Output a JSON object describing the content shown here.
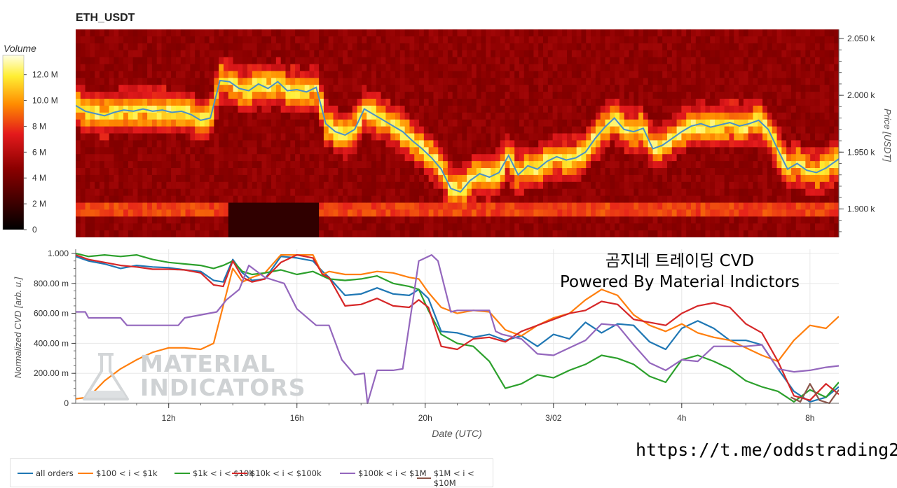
{
  "chart_data": [
    {
      "type": "heatmap",
      "title": "ETH_USDT",
      "ylabel": "Price [USDT]",
      "ylim": [
        1875,
        2058
      ],
      "y_ticks": [
        "2.050 k",
        "2.000 k",
        "1.950 k",
        "1.900 k"
      ],
      "y_tick_values": [
        2050,
        2000,
        1950,
        1900
      ],
      "colorbar": {
        "label": "Volume",
        "ticks": [
          "12.0 M",
          "10.0 M",
          "8 M",
          "6 M",
          "4 M",
          "2 M",
          "0"
        ],
        "tick_values": [
          12,
          10,
          8,
          6,
          4,
          2,
          0
        ],
        "max": 13.5,
        "unit": "M"
      },
      "x_range_hours": [
        9.1,
        32.9
      ],
      "price_line_color": "#4a90c8",
      "price_line": {
        "x": [
          9.1,
          9.4,
          9.7,
          10.0,
          10.3,
          10.6,
          10.9,
          11.2,
          11.5,
          11.8,
          12.1,
          12.4,
          12.7,
          13.0,
          13.3,
          13.6,
          13.9,
          14.2,
          14.5,
          14.8,
          15.1,
          15.4,
          15.7,
          16.0,
          16.3,
          16.6,
          16.9,
          17.2,
          17.5,
          17.8,
          18.1,
          18.4,
          18.7,
          19.0,
          19.3,
          19.6,
          19.9,
          20.2,
          20.5,
          20.8,
          21.1,
          21.4,
          21.7,
          22.0,
          22.3,
          22.6,
          22.9,
          23.2,
          23.5,
          23.8,
          24.1,
          24.4,
          24.7,
          25.0,
          25.3,
          25.6,
          25.9,
          26.2,
          26.5,
          26.8,
          27.1,
          27.4,
          27.7,
          28.0,
          28.3,
          28.6,
          28.9,
          29.2,
          29.5,
          29.8,
          30.1,
          30.4,
          30.7,
          31.0,
          31.3,
          31.6,
          31.9,
          32.2,
          32.5,
          32.9
        ],
        "y": [
          1991,
          1986,
          1984,
          1982,
          1985,
          1987,
          1986,
          1988,
          1986,
          1987,
          1985,
          1986,
          1983,
          1978,
          1980,
          2013,
          2012,
          2006,
          2004,
          2010,
          2006,
          2012,
          2004,
          2005,
          2003,
          2007,
          1975,
          1968,
          1965,
          1970,
          1988,
          1983,
          1978,
          1973,
          1968,
          1960,
          1953,
          1945,
          1935,
          1918,
          1915,
          1925,
          1931,
          1928,
          1932,
          1947,
          1930,
          1938,
          1935,
          1942,
          1946,
          1943,
          1945,
          1950,
          1962,
          1972,
          1980,
          1970,
          1968,
          1971,
          1953,
          1956,
          1962,
          1968,
          1973,
          1975,
          1972,
          1974,
          1976,
          1973,
          1975,
          1978,
          1970,
          1952,
          1935,
          1940,
          1934,
          1932,
          1936,
          1944
        ]
      }
    },
    {
      "type": "line",
      "xlabel": "Date (UTC)",
      "ylabel": "Normalized CVD [arb. u.]",
      "ylim": [
        0,
        1000
      ],
      "y_ticks": [
        "0",
        "200.00 m",
        "400.00 m",
        "600.00 m",
        "800.00 m",
        "1.000"
      ],
      "y_tick_values": [
        0,
        200,
        400,
        600,
        800,
        1000
      ],
      "x_ticks": [
        "12h",
        "16h",
        "20h",
        "3/02",
        "4h",
        "8h"
      ],
      "x_tick_hours": [
        12,
        16,
        20,
        24,
        28,
        32
      ],
      "x_range_hours": [
        9.1,
        32.9
      ],
      "grid": true,
      "legend_position": "bottom-left",
      "series": [
        {
          "name": "all orders",
          "color": "#1f77b4",
          "x": [
            9.1,
            9.5,
            10,
            10.5,
            11,
            11.5,
            12,
            12.5,
            13,
            13.4,
            13.7,
            14,
            14.3,
            14.6,
            15,
            15.5,
            16,
            16.5,
            16.8,
            17,
            17.5,
            18,
            18.5,
            19,
            19.5,
            19.8,
            20.1,
            20.5,
            21,
            21.5,
            22,
            22.5,
            23,
            23.5,
            24,
            24.5,
            25,
            25.5,
            26,
            26.5,
            27,
            27.5,
            28,
            28.5,
            29,
            29.5,
            30,
            30.5,
            31,
            31.5,
            32,
            32.5,
            32.9
          ],
          "y": [
            980,
            950,
            930,
            900,
            920,
            910,
            905,
            890,
            880,
            820,
            810,
            960,
            870,
            820,
            830,
            980,
            970,
            950,
            880,
            840,
            720,
            730,
            770,
            730,
            720,
            760,
            700,
            480,
            470,
            440,
            460,
            420,
            450,
            380,
            460,
            430,
            540,
            470,
            530,
            520,
            410,
            360,
            500,
            550,
            500,
            420,
            420,
            390,
            230,
            80,
            10,
            40,
            110
          ]
        },
        {
          "name": "$100 < i < $1k",
          "color": "#ff7f0e",
          "x": [
            9.1,
            9.5,
            10,
            10.5,
            11,
            11.5,
            12,
            12.5,
            13,
            13.4,
            13.7,
            14,
            14.3,
            14.6,
            15,
            15.5,
            16,
            16.5,
            16.8,
            17,
            17.5,
            18,
            18.5,
            19,
            19.5,
            19.8,
            20.1,
            20.5,
            21,
            21.5,
            22,
            22.5,
            23,
            23.5,
            24,
            24.5,
            25,
            25.5,
            26,
            26.5,
            27,
            27.5,
            28,
            28.5,
            29,
            29.5,
            30,
            30.5,
            31,
            31.5,
            32,
            32.5,
            32.9
          ],
          "y": [
            30,
            40,
            150,
            230,
            290,
            340,
            370,
            370,
            360,
            400,
            650,
            900,
            810,
            840,
            870,
            990,
            990,
            990,
            860,
            880,
            860,
            860,
            880,
            870,
            840,
            830,
            740,
            640,
            600,
            620,
            610,
            490,
            450,
            520,
            570,
            600,
            690,
            760,
            720,
            590,
            520,
            480,
            530,
            470,
            440,
            420,
            370,
            320,
            280,
            420,
            520,
            500,
            580
          ]
        },
        {
          "name": "$1k < i < $10k",
          "color": "#2ca02c",
          "x": [
            9.1,
            9.5,
            10,
            10.5,
            11,
            11.5,
            12,
            12.5,
            13,
            13.4,
            13.7,
            14,
            14.3,
            14.6,
            15,
            15.5,
            16,
            16.5,
            16.8,
            17,
            17.5,
            18,
            18.5,
            19,
            19.5,
            19.8,
            20.1,
            20.5,
            21,
            21.5,
            22,
            22.5,
            23,
            23.5,
            24,
            24.5,
            25,
            25.5,
            26,
            26.5,
            27,
            27.5,
            28,
            28.5,
            29,
            29.5,
            30,
            30.5,
            31,
            31.5,
            32,
            32.5,
            32.9
          ],
          "y": [
            1000,
            980,
            990,
            980,
            990,
            960,
            940,
            930,
            920,
            900,
            920,
            950,
            880,
            860,
            870,
            890,
            860,
            880,
            850,
            830,
            820,
            830,
            850,
            800,
            780,
            760,
            620,
            460,
            400,
            380,
            280,
            100,
            130,
            190,
            170,
            220,
            260,
            320,
            300,
            260,
            180,
            140,
            290,
            320,
            280,
            230,
            150,
            110,
            80,
            10,
            90,
            40,
            140
          ]
        },
        {
          "name": "$10k < i < $100k",
          "color": "#d62728",
          "x": [
            9.1,
            9.5,
            10,
            10.5,
            11,
            11.5,
            12,
            12.5,
            13,
            13.4,
            13.7,
            14,
            14.3,
            14.6,
            15,
            15.5,
            16,
            16.5,
            16.8,
            17,
            17.5,
            18,
            18.5,
            19,
            19.5,
            19.8,
            20.1,
            20.5,
            21,
            21.5,
            22,
            22.5,
            23,
            23.5,
            24,
            24.5,
            25,
            25.5,
            26,
            26.5,
            27,
            27.5,
            28,
            28.5,
            29,
            29.5,
            30,
            30.5,
            31,
            31.5,
            32,
            32.5,
            32.9
          ],
          "y": [
            990,
            960,
            940,
            920,
            910,
            895,
            895,
            890,
            870,
            790,
            780,
            950,
            840,
            810,
            830,
            940,
            990,
            970,
            860,
            840,
            650,
            660,
            700,
            650,
            640,
            690,
            640,
            380,
            360,
            430,
            440,
            410,
            480,
            520,
            560,
            600,
            620,
            680,
            660,
            560,
            540,
            520,
            600,
            650,
            670,
            640,
            530,
            470,
            280,
            50,
            20,
            130,
            60
          ]
        },
        {
          "name": "$100k < i < $1M",
          "color": "#9467bd",
          "x": [
            9.1,
            9.4,
            9.5,
            10.5,
            10.7,
            12.3,
            12.5,
            13.5,
            13.8,
            14.2,
            14.5,
            15,
            15.6,
            16,
            16.6,
            17,
            17.4,
            17.8,
            18.1,
            18.2,
            18.5,
            19,
            19.3,
            19.8,
            19.9,
            20.2,
            20.4,
            20.8,
            21,
            22,
            22.2,
            22.4,
            23,
            23.5,
            24,
            24.5,
            25,
            25.5,
            26,
            26.5,
            27,
            27.5,
            28,
            28.5,
            29,
            29.5,
            30,
            30.5,
            31,
            31.5,
            32,
            32.5,
            32.9
          ],
          "y": [
            610,
            610,
            570,
            570,
            520,
            520,
            570,
            610,
            690,
            760,
            920,
            840,
            800,
            630,
            520,
            520,
            290,
            190,
            200,
            0,
            220,
            220,
            230,
            950,
            960,
            990,
            950,
            610,
            620,
            620,
            480,
            460,
            430,
            330,
            320,
            370,
            420,
            530,
            520,
            390,
            270,
            220,
            290,
            280,
            380,
            380,
            380,
            390,
            230,
            210,
            220,
            240,
            250
          ]
        },
        {
          "name": "$1M < i < $10M",
          "color": "#8c564b",
          "x": [
            31.4,
            31.7,
            32.0,
            32.3,
            32.6,
            32.9
          ],
          "y": [
            40,
            10,
            130,
            20,
            0,
            90
          ]
        }
      ]
    }
  ],
  "watermark": {
    "line1": "곰지네 트레이딩 CVD",
    "line2": "Powered By Material Indictors"
  },
  "logo": {
    "line1": "MATERIAL",
    "line2": "INDICATORS"
  },
  "telegram_link": "https://t.me/oddstrading2"
}
